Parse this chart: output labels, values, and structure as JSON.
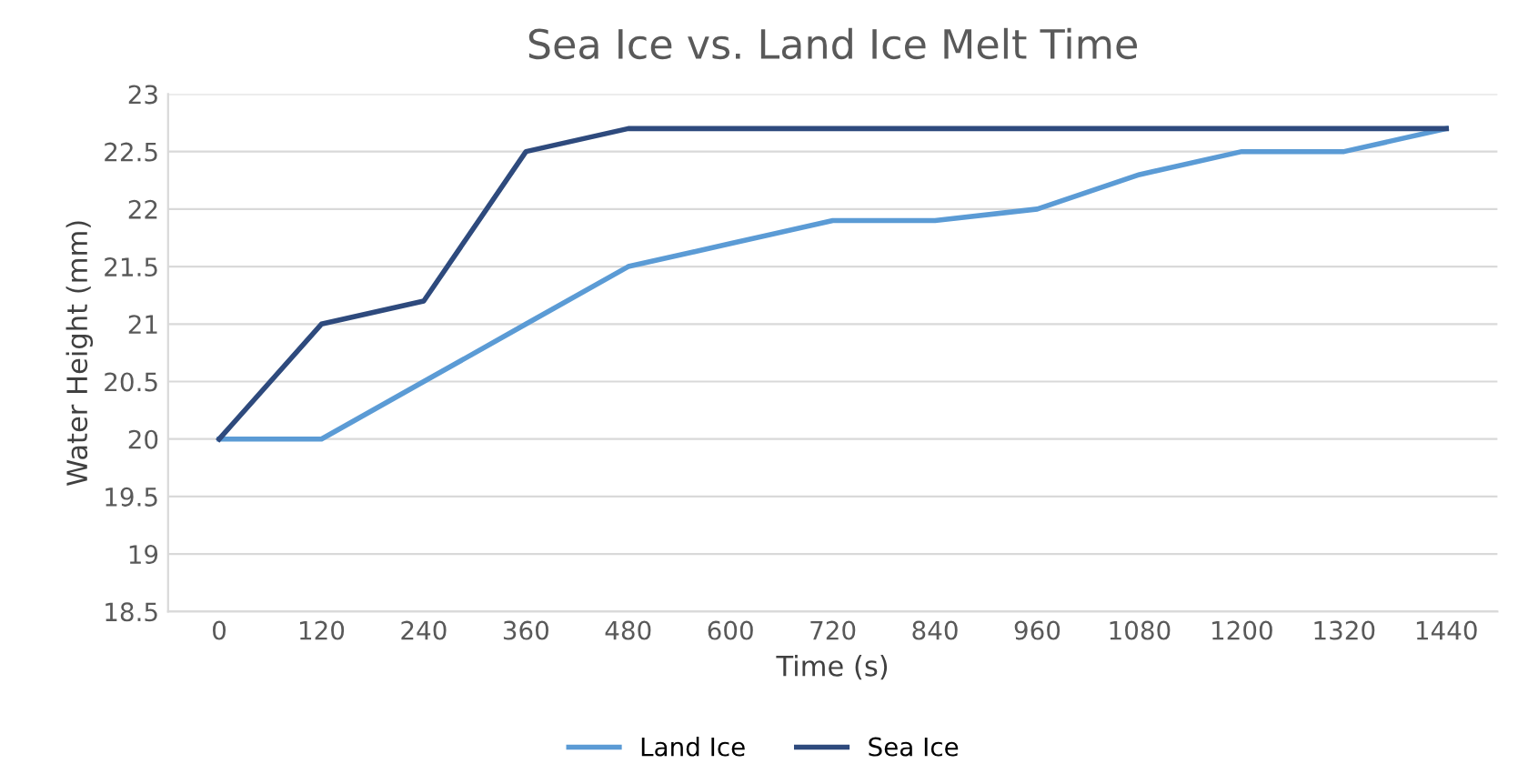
{
  "chart_data": {
    "type": "line",
    "title": "Sea Ice vs. Land Ice Melt Time",
    "xlabel": "Time (s)",
    "ylabel": "Water Height (mm)",
    "categories": [
      "0",
      "120",
      "240",
      "360",
      "480",
      "600",
      "720",
      "840",
      "960",
      "1080",
      "1200",
      "1320",
      "1440"
    ],
    "series": [
      {
        "name": "Land Ice",
        "color": "#5b9bd5",
        "values": [
          20,
          20,
          20.5,
          21,
          21.5,
          21.7,
          21.9,
          21.9,
          22.0,
          22.3,
          22.5,
          22.5,
          22.7
        ]
      },
      {
        "name": "Sea Ice",
        "color": "#2e4a7d",
        "values": [
          20,
          21,
          21.2,
          22.5,
          22.7,
          22.7,
          22.7,
          22.7,
          22.7,
          22.7,
          22.7,
          22.7,
          22.7
        ]
      }
    ],
    "ylim": [
      18.5,
      23
    ],
    "yticks": [
      18.5,
      19,
      19.5,
      20,
      20.5,
      21,
      21.5,
      22,
      22.5,
      23
    ],
    "grid": "y",
    "legend": "bottom",
    "marker": "none",
    "line_style": "solid"
  }
}
